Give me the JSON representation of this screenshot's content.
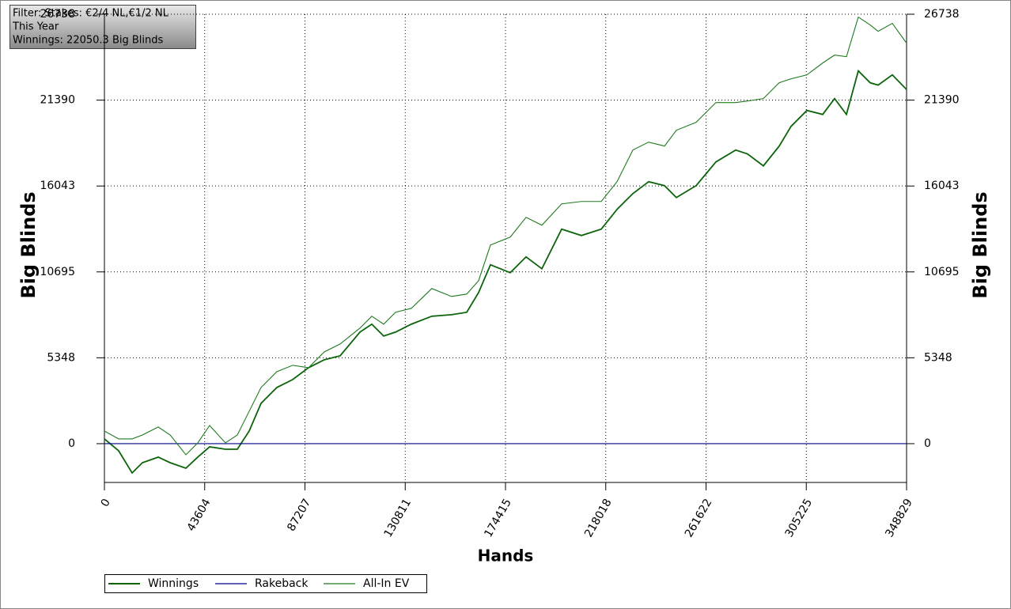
{
  "chart_data": {
    "type": "line",
    "annotations": [
      "Filter: Stakes: €2/4 NL,€1/2 NL",
      "This Year",
      "Winnings: 22050.3 Big Blinds"
    ],
    "x_label": "Hands",
    "y_label": "Big Blinds",
    "y2_label": "Big Blinds",
    "x": [
      0,
      6192,
      12040,
      16512,
      23392,
      28553,
      35433,
      40593,
      45753,
      52634,
      57794,
      62954,
      68114,
      74994,
      81875,
      88755,
      95635,
      102515,
      111115,
      116275,
      121436,
      126596,
      133476,
      142356,
      150956,
      157557,
      162717,
      167877,
      176477,
      183357,
      190238,
      198838,
      207438,
      216038,
      222918,
      229798,
      236678,
      243559,
      248719,
      257319,
      265919,
      274519,
      279680,
      286560,
      293440,
      298600,
      305480,
      312360,
      317521,
      322681,
      327841,
      333001,
      336441,
      342633,
      348829
    ],
    "series": [
      {
        "name": "Winnings",
        "color": "#0b640b",
        "values": [
          296,
          -444,
          -1823,
          -1183,
          -838,
          -1183,
          -1528,
          -838,
          -197,
          -345,
          -345,
          788,
          2513,
          3499,
          3992,
          4731,
          5224,
          5470,
          6948,
          7441,
          6702,
          6948,
          7441,
          7934,
          8033,
          8180,
          9412,
          11137,
          10645,
          11630,
          10891,
          13355,
          12961,
          13355,
          14587,
          15572,
          16312,
          16065,
          15326,
          16065,
          17544,
          18283,
          18036,
          17297,
          18529,
          19761,
          20746,
          20500,
          21486,
          20500,
          23210,
          22471,
          22323,
          22964,
          22050
        ]
      },
      {
        "name": "Rakeback",
        "color": "#00008b",
        "values": [
          0,
          0,
          0,
          0,
          0,
          0,
          0,
          0,
          0,
          0,
          0,
          0,
          0,
          0,
          0,
          0,
          0,
          0,
          0,
          0,
          0,
          0,
          0,
          0,
          0,
          0,
          0,
          0,
          0,
          0,
          0,
          0,
          0,
          0,
          0,
          0,
          0,
          0,
          0,
          0,
          0,
          0,
          0,
          0,
          0,
          0,
          0,
          0,
          0,
          0,
          0,
          0,
          0,
          0,
          0
        ]
      },
      {
        "name": "All-In EV",
        "color": "#1f7a1f",
        "values": [
          788,
          296,
          296,
          542,
          1035,
          542,
          -690,
          49,
          1133,
          49,
          542,
          2020,
          3499,
          4484,
          4879,
          4731,
          5716,
          6209,
          7195,
          7934,
          7441,
          8180,
          8427,
          9659,
          9166,
          9314,
          10152,
          12369,
          12862,
          14094,
          13601,
          14932,
          15079,
          15079,
          16312,
          18283,
          18776,
          18529,
          19515,
          20008,
          21240,
          21240,
          21338,
          21486,
          22471,
          22718,
          22964,
          23703,
          24196,
          24098,
          26562,
          26069,
          25675,
          26168,
          24935
        ]
      }
    ],
    "xlim": [
      0,
      348829
    ],
    "xticks": [
      0,
      43604,
      87207,
      130811,
      174415,
      218018,
      261622,
      305225,
      348829
    ],
    "ylim": [
      -2415,
      26738
    ],
    "yticks": [
      0,
      5348,
      10695,
      16043,
      21390,
      26738
    ],
    "grid": true,
    "legend": "bottom-left"
  }
}
